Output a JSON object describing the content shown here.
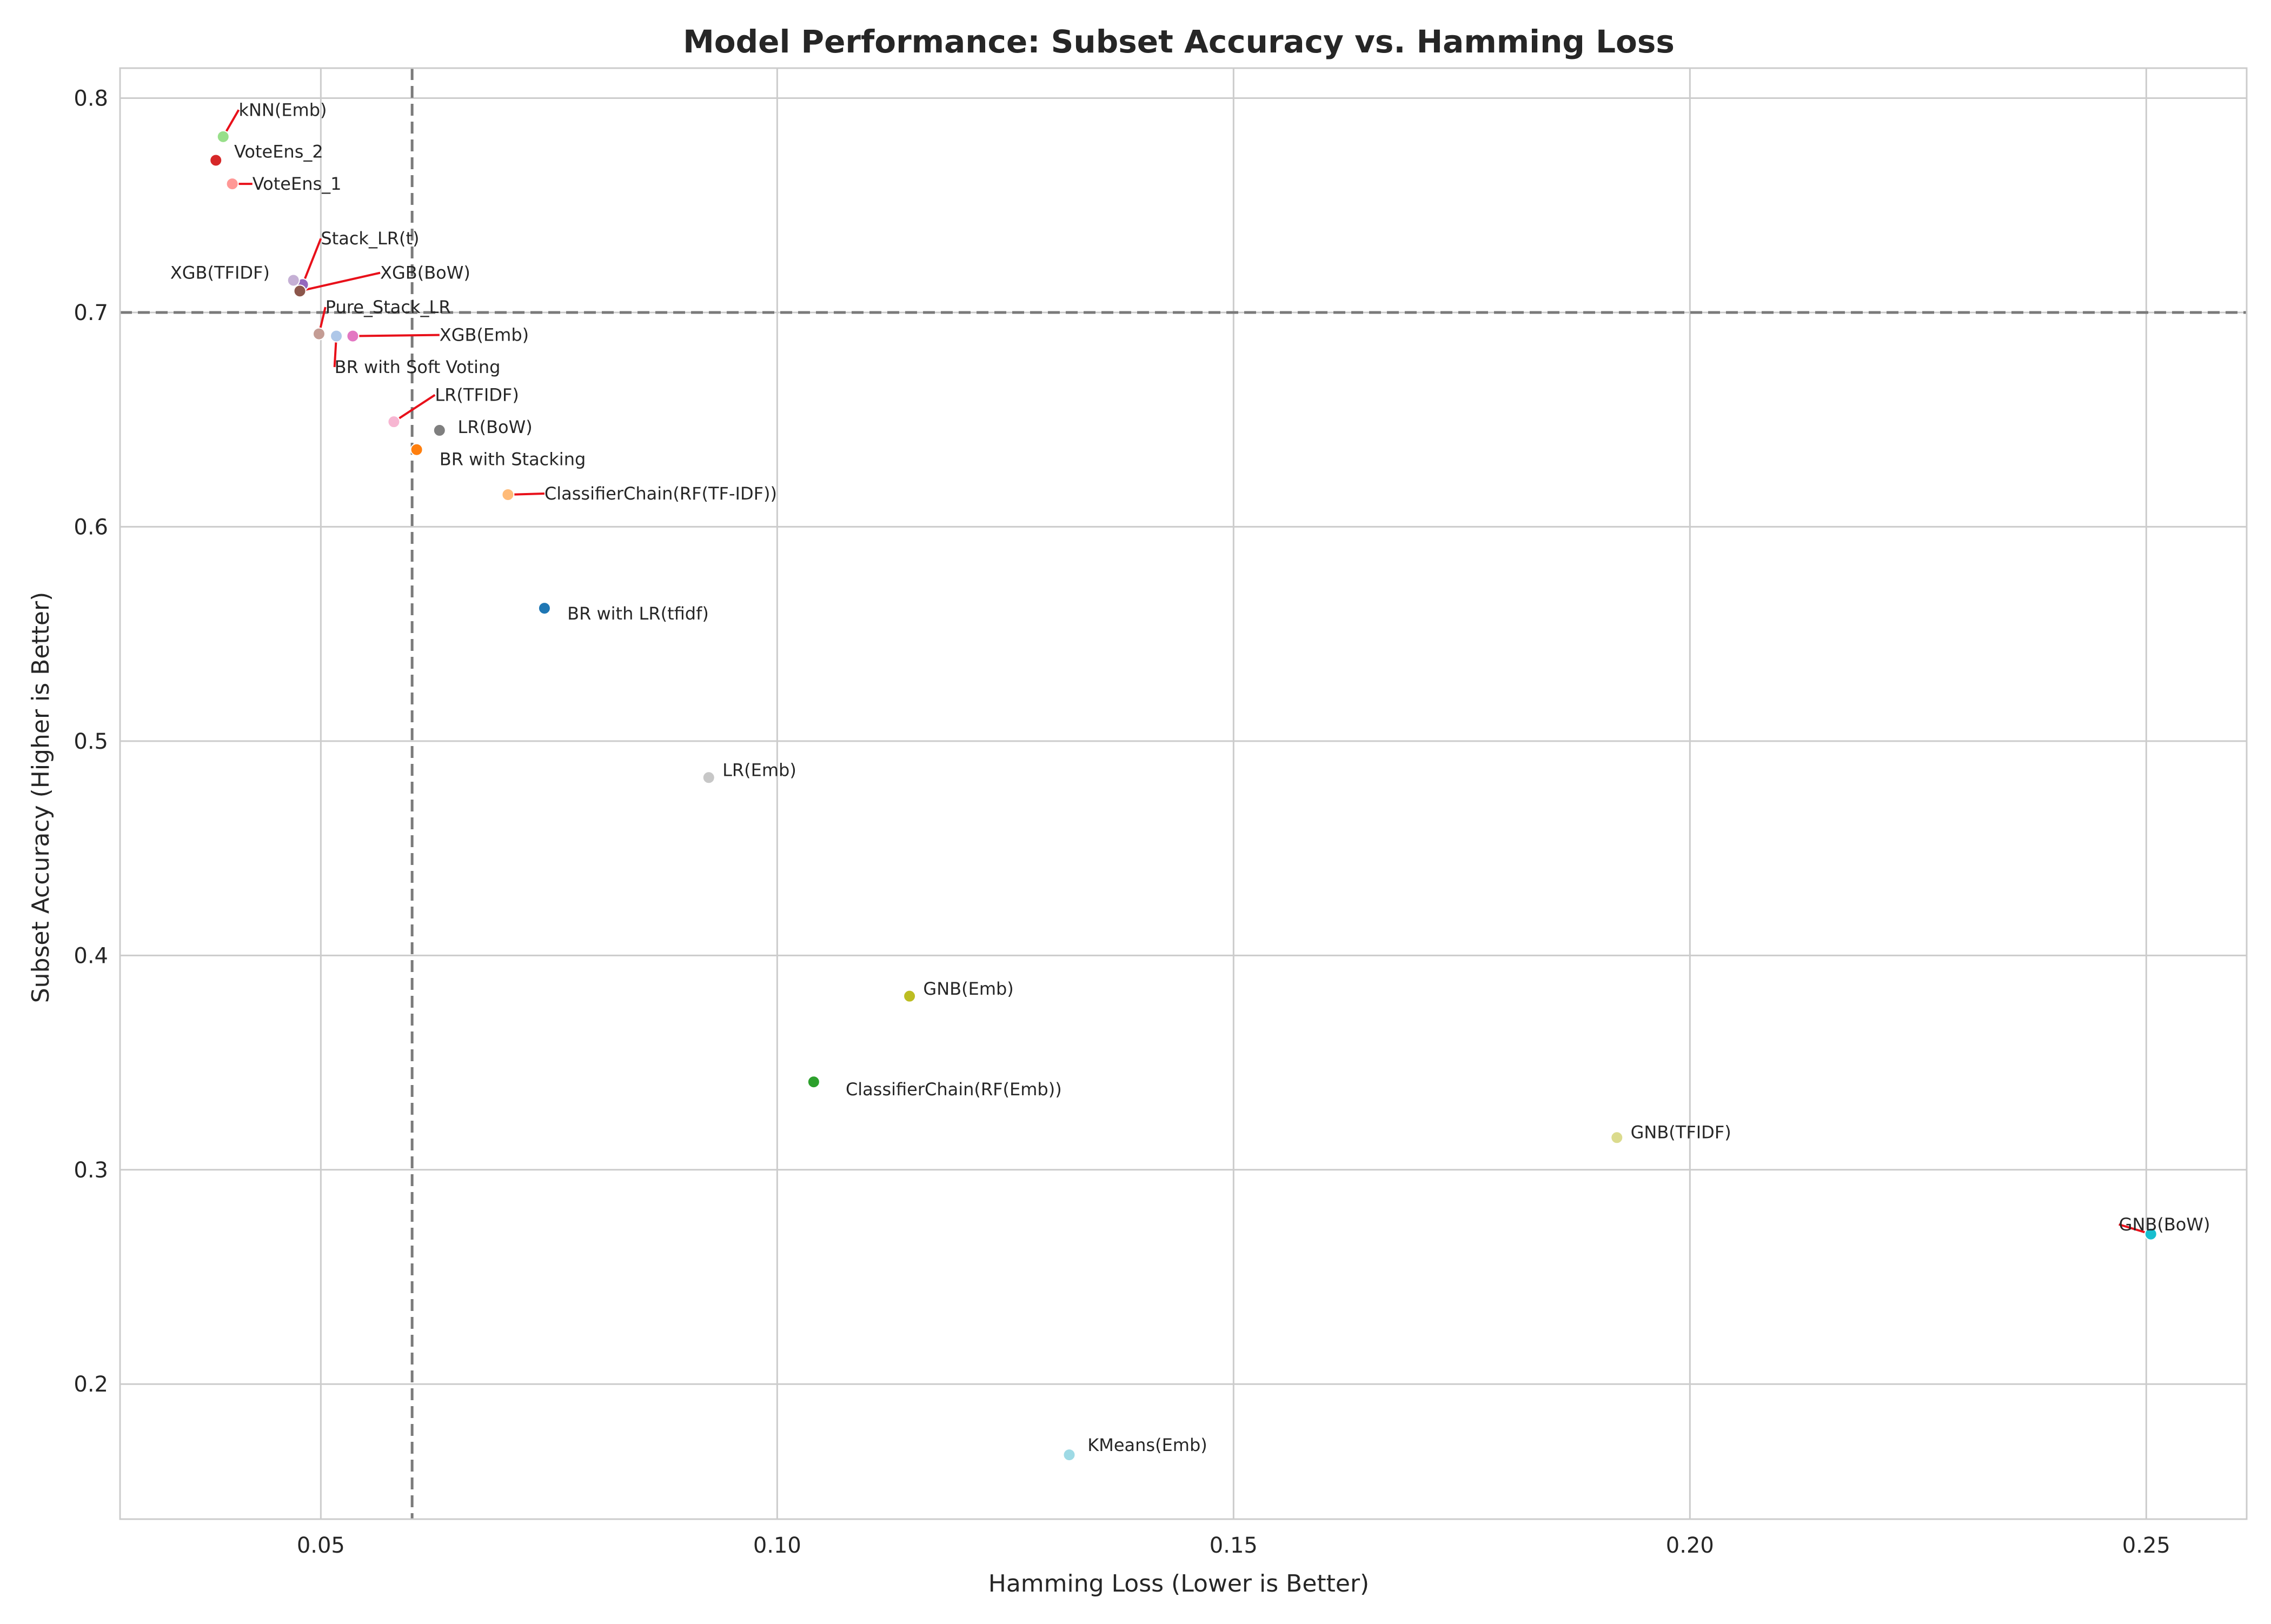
{
  "chart_data": {
    "type": "scatter",
    "title": "Model Performance: Subset Accuracy vs. Hamming Loss",
    "xlabel": "Hamming Loss (Lower is Better)",
    "ylabel": "Subset Accuracy (Higher is Better)",
    "xlim": [
      0.028,
      0.261
    ],
    "ylim": [
      0.137,
      0.814
    ],
    "x_ticks": [
      0.05,
      0.1,
      0.15,
      0.2,
      0.25
    ],
    "x_tick_labels": [
      "0.05",
      "0.10",
      "0.15",
      "0.20",
      "0.25"
    ],
    "y_ticks": [
      0.2,
      0.3,
      0.4,
      0.5,
      0.6,
      0.7,
      0.8
    ],
    "y_tick_labels": [
      "0.2",
      "0.3",
      "0.4",
      "0.5",
      "0.6",
      "0.7",
      "0.8"
    ],
    "grid": true,
    "reference_lines": {
      "x": 0.06,
      "y": 0.7
    },
    "points": [
      {
        "label": "kNN(Emb)",
        "x": 0.0393,
        "y": 0.782,
        "color": "#98df8a",
        "label_x": 0.041,
        "label_y": 0.7945,
        "leader": true
      },
      {
        "label": "VoteEns_2",
        "x": 0.0385,
        "y": 0.771,
        "color": "#d62728",
        "label_x": 0.0405,
        "label_y": 0.775,
        "leader": false
      },
      {
        "label": "VoteEns_1",
        "x": 0.0403,
        "y": 0.76,
        "color": "#ff9896",
        "label_x": 0.0425,
        "label_y": 0.76,
        "leader": true
      },
      {
        "label": "Stack_LR(t)",
        "x": 0.048,
        "y": 0.713,
        "color": "#9467bd",
        "label_x": 0.05,
        "label_y": 0.7345,
        "leader": true
      },
      {
        "label": "XGB(TFIDF)",
        "x": 0.047,
        "y": 0.715,
        "color": "#c5b0d5",
        "label_x": 0.0335,
        "label_y": 0.7185,
        "leader": false
      },
      {
        "label": "XGB(BoW)",
        "x": 0.0477,
        "y": 0.71,
        "color": "#8c564b",
        "label_x": 0.0565,
        "label_y": 0.7185,
        "leader": true
      },
      {
        "label": "Pure_Stack_LR",
        "x": 0.0498,
        "y": 0.69,
        "color": "#c49c94",
        "label_x": 0.0505,
        "label_y": 0.7025,
        "leader": true
      },
      {
        "label": "XGB(Emb)",
        "x": 0.0535,
        "y": 0.689,
        "color": "#e377c2",
        "label_x": 0.063,
        "label_y": 0.6895,
        "leader": true
      },
      {
        "label": "BR with Soft Voting",
        "x": 0.0517,
        "y": 0.689,
        "color": "#aec7e8",
        "label_x": 0.0515,
        "label_y": 0.6745,
        "leader": true
      },
      {
        "label": "LR(TFIDF)",
        "x": 0.058,
        "y": 0.649,
        "color": "#f7b6d2",
        "label_x": 0.0625,
        "label_y": 0.6615,
        "leader": true
      },
      {
        "label": "LR(BoW)",
        "x": 0.063,
        "y": 0.645,
        "color": "#7f7f7f",
        "label_x": 0.065,
        "label_y": 0.6465,
        "leader": false
      },
      {
        "label": "BR with Stacking",
        "x": 0.0605,
        "y": 0.636,
        "color": "#ff7f0e",
        "label_x": 0.063,
        "label_y": 0.6315,
        "leader": false
      },
      {
        "label": "ClassifierChain(RF(TF-IDF))",
        "x": 0.0705,
        "y": 0.615,
        "color": "#ffbb78",
        "label_x": 0.0745,
        "label_y": 0.6155,
        "leader": true
      },
      {
        "label": "BR with LR(tfidf)",
        "x": 0.0745,
        "y": 0.562,
        "color": "#1f77b4",
        "label_x": 0.077,
        "label_y": 0.5595,
        "leader": false
      },
      {
        "label": "LR(Emb)",
        "x": 0.0925,
        "y": 0.483,
        "color": "#c7c7c7",
        "label_x": 0.094,
        "label_y": 0.4865,
        "leader": false
      },
      {
        "label": "GNB(Emb)",
        "x": 0.1145,
        "y": 0.381,
        "color": "#bcbd22",
        "label_x": 0.116,
        "label_y": 0.3845,
        "leader": false
      },
      {
        "label": "ClassifierChain(RF(Emb))",
        "x": 0.104,
        "y": 0.341,
        "color": "#2ca02c",
        "label_x": 0.1075,
        "label_y": 0.3375,
        "leader": false
      },
      {
        "label": "GNB(TFIDF)",
        "x": 0.192,
        "y": 0.315,
        "color": "#dbdb8d",
        "label_x": 0.1935,
        "label_y": 0.3175,
        "leader": false
      },
      {
        "label": "GNB(BoW)",
        "x": 0.2505,
        "y": 0.27,
        "color": "#17becf",
        "label_x": 0.247,
        "label_y": 0.2745,
        "leader": true
      },
      {
        "label": "KMeans(Emb)",
        "x": 0.132,
        "y": 0.167,
        "color": "#9edae5",
        "label_x": 0.134,
        "label_y": 0.1715,
        "leader": false
      }
    ]
  }
}
